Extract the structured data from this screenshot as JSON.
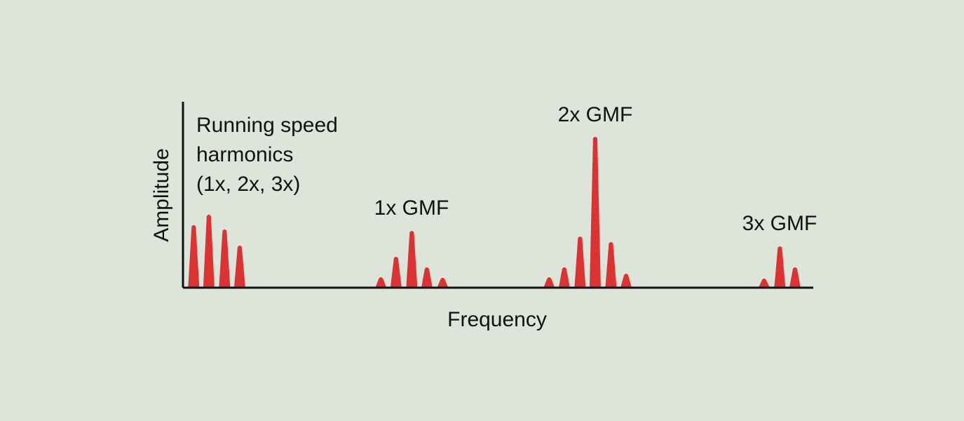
{
  "chart_data": {
    "type": "spectrum",
    "xlabel": "Frequency",
    "ylabel": "Amplitude",
    "x": [
      1.7,
      4.1,
      6.6,
      9.0,
      31.4,
      33.8,
      36.3,
      38.7,
      41.2,
      58.1,
      60.5,
      63.0,
      65.4,
      67.9,
      70.3,
      92.2,
      94.7,
      97.1
    ],
    "values": [
      34,
      39.6,
      31.7,
      23,
      6,
      17,
      30.9,
      11.3,
      5.7,
      6,
      11.3,
      27.9,
      81.5,
      24.9,
      7.9,
      5.3,
      22.6,
      11.3
    ],
    "color": "#dc3232",
    "xlim": [
      0,
      100
    ],
    "ylim": [
      0,
      100
    ],
    "annotations": [
      [
        "Running speed",
        "harmonics",
        "(1x, 2x, 3x)"
      ],
      [
        "1x GMF"
      ],
      [
        "2x GMF"
      ],
      [
        "3x GMF"
      ]
    ]
  }
}
